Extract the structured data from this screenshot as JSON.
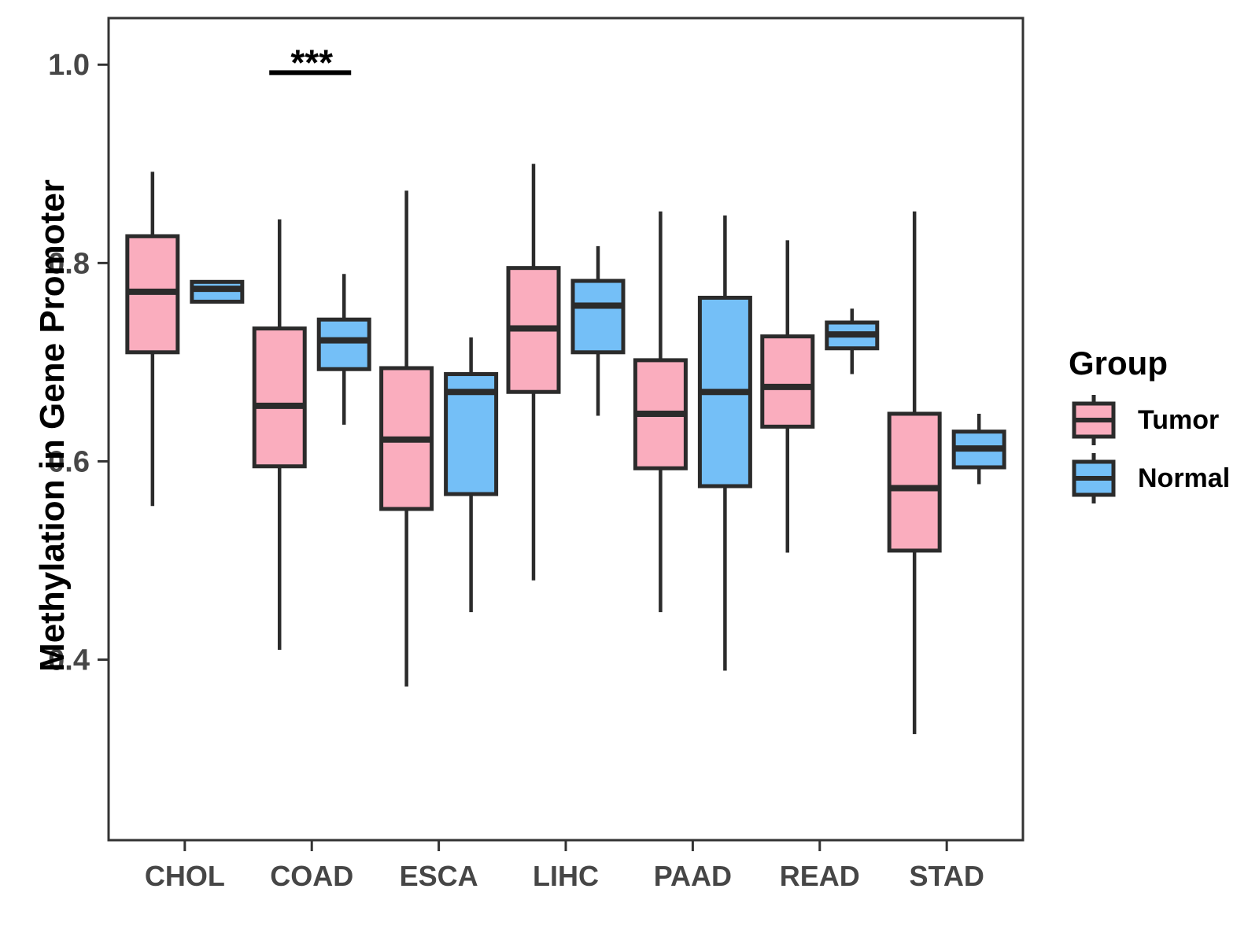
{
  "chart_data": {
    "type": "boxplot",
    "title": "",
    "xlabel": "",
    "ylabel": "Methylation in Gene Promoter",
    "categories": [
      "CHOL",
      "COAD",
      "ESCA",
      "LIHC",
      "PAAD",
      "READ",
      "STAD"
    ],
    "groups": [
      "Tumor",
      "Normal"
    ],
    "colors": {
      "Tumor": "#FAADBE",
      "Normal": "#74BFF7",
      "stroke": "#2B2B2B",
      "axis": "#333333",
      "tick_label": "#464646"
    },
    "ylim": [
      0.218,
      1.047
    ],
    "yticks": [
      "1.0",
      "0.8",
      "0.6",
      "0.4"
    ],
    "ytick_values": [
      1.0,
      0.8,
      0.6,
      0.4
    ],
    "grid": false,
    "legend_position": "right",
    "series": [
      {
        "name": "Tumor",
        "boxes": [
          {
            "category": "CHOL",
            "low": 0.555,
            "q1": 0.71,
            "median": 0.771,
            "q3": 0.827,
            "high": 0.892
          },
          {
            "category": "COAD",
            "low": 0.41,
            "q1": 0.595,
            "median": 0.656,
            "q3": 0.734,
            "high": 0.844
          },
          {
            "category": "ESCA",
            "low": 0.373,
            "q1": 0.552,
            "median": 0.622,
            "q3": 0.694,
            "high": 0.873
          },
          {
            "category": "LIHC",
            "low": 0.48,
            "q1": 0.67,
            "median": 0.734,
            "q3": 0.795,
            "high": 0.9
          },
          {
            "category": "PAAD",
            "low": 0.448,
            "q1": 0.593,
            "median": 0.648,
            "q3": 0.702,
            "high": 0.852
          },
          {
            "category": "READ",
            "low": 0.508,
            "q1": 0.635,
            "median": 0.675,
            "q3": 0.726,
            "high": 0.823
          },
          {
            "category": "STAD",
            "low": 0.325,
            "q1": 0.51,
            "median": 0.573,
            "q3": 0.648,
            "high": 0.852
          }
        ]
      },
      {
        "name": "Normal",
        "boxes": [
          {
            "category": "CHOL",
            "low": 0.761,
            "q1": 0.761,
            "median": 0.774,
            "q3": 0.781,
            "high": 0.781
          },
          {
            "category": "COAD",
            "low": 0.637,
            "q1": 0.693,
            "median": 0.722,
            "q3": 0.743,
            "high": 0.789
          },
          {
            "category": "ESCA",
            "low": 0.448,
            "q1": 0.567,
            "median": 0.67,
            "q3": 0.688,
            "high": 0.725
          },
          {
            "category": "LIHC",
            "low": 0.646,
            "q1": 0.71,
            "median": 0.757,
            "q3": 0.782,
            "high": 0.817
          },
          {
            "category": "PAAD",
            "low": 0.389,
            "q1": 0.575,
            "median": 0.67,
            "q3": 0.765,
            "high": 0.848
          },
          {
            "category": "READ",
            "low": 0.688,
            "q1": 0.714,
            "median": 0.728,
            "q3": 0.74,
            "high": 0.754
          },
          {
            "category": "STAD",
            "low": 0.577,
            "q1": 0.594,
            "median": 0.613,
            "q3": 0.63,
            "high": 0.648
          }
        ]
      }
    ],
    "annotations": [
      {
        "label": "***",
        "category": "COAD",
        "line_y": 0.992,
        "text_y": 1.006
      }
    ],
    "legend": {
      "title": "Group",
      "entries": [
        {
          "label": "Tumor"
        },
        {
          "label": "Normal"
        }
      ]
    }
  }
}
